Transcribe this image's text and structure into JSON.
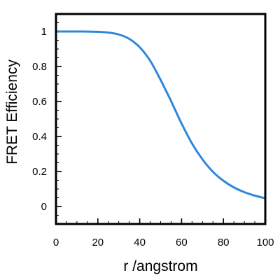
{
  "chart_data": {
    "type": "line",
    "title": "",
    "xlabel": "r /angstrom",
    "ylabel": "FRET Efficiency",
    "xlim": [
      0,
      100
    ],
    "ylim": [
      -0.1,
      1.1
    ],
    "xticks": [
      0,
      20,
      40,
      60,
      80,
      100
    ],
    "xtick_labels": [
      "0",
      "20",
      "40",
      "60",
      "80",
      "100"
    ],
    "yticks": [
      0,
      0.2,
      0.4,
      0.6,
      0.8,
      1
    ],
    "ytick_labels": [
      "0",
      "0.2",
      "0.4",
      "0.6",
      "0.8",
      "1"
    ],
    "grid": false,
    "legend": "none",
    "series": [
      {
        "color": "#2e86de",
        "x": [
          0,
          5,
          10,
          15,
          20,
          25,
          30,
          35,
          40,
          45,
          50,
          52,
          55,
          60,
          65,
          70,
          75,
          80,
          85,
          90,
          95,
          100
        ],
        "y": [
          1.0,
          1.0,
          1.0,
          0.9997,
          0.9983,
          0.9941,
          0.983,
          0.958,
          0.91,
          0.833,
          0.723,
          0.675,
          0.602,
          0.474,
          0.36,
          0.269,
          0.198,
          0.147,
          0.109,
          0.082,
          0.062,
          0.047
        ]
      }
    ]
  }
}
